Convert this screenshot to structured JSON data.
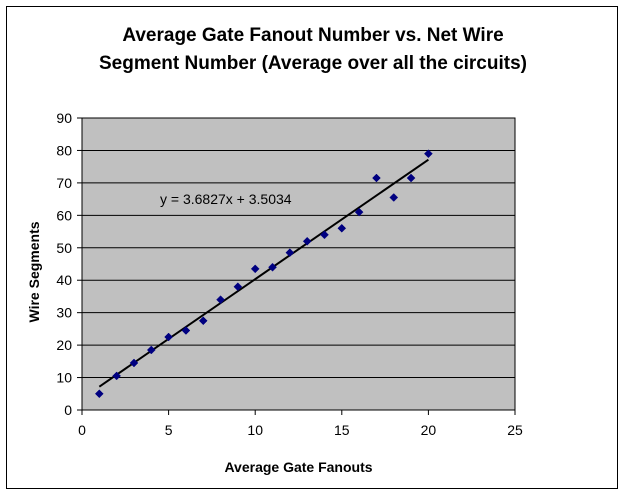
{
  "chart_data": {
    "type": "scatter",
    "title": [
      "Average Gate Fanout Number vs. Net Wire",
      "Segment Number (Average over all the circuits)"
    ],
    "xlabel": "Average Gate Fanouts",
    "ylabel": "Wire Segments",
    "xlim": [
      0,
      25
    ],
    "ylim": [
      0,
      90
    ],
    "xticks": [
      0,
      5,
      10,
      15,
      20,
      25
    ],
    "yticks": [
      0,
      10,
      20,
      30,
      40,
      50,
      60,
      70,
      80,
      90
    ],
    "grid": "horizontal",
    "plot_background": "#c0c0c0",
    "marker_color": "#000080",
    "trendline_color": "#000000",
    "series": [
      {
        "x": [
          1,
          2,
          3,
          4,
          5,
          6,
          7,
          8,
          9,
          10,
          11,
          12,
          13,
          14,
          15,
          16,
          17,
          18,
          19,
          20
        ],
        "y": [
          5,
          10.5,
          14.5,
          18.5,
          22.5,
          24.5,
          27.5,
          34,
          38,
          43.5,
          44,
          48.5,
          52,
          54,
          56,
          61,
          71.5,
          65.5,
          71.5,
          79
        ]
      }
    ],
    "trendline": {
      "slope": 3.6827,
      "intercept": 3.5034,
      "x_range": [
        1,
        20
      ],
      "label": "y = 3.6827x + 3.5034"
    }
  }
}
